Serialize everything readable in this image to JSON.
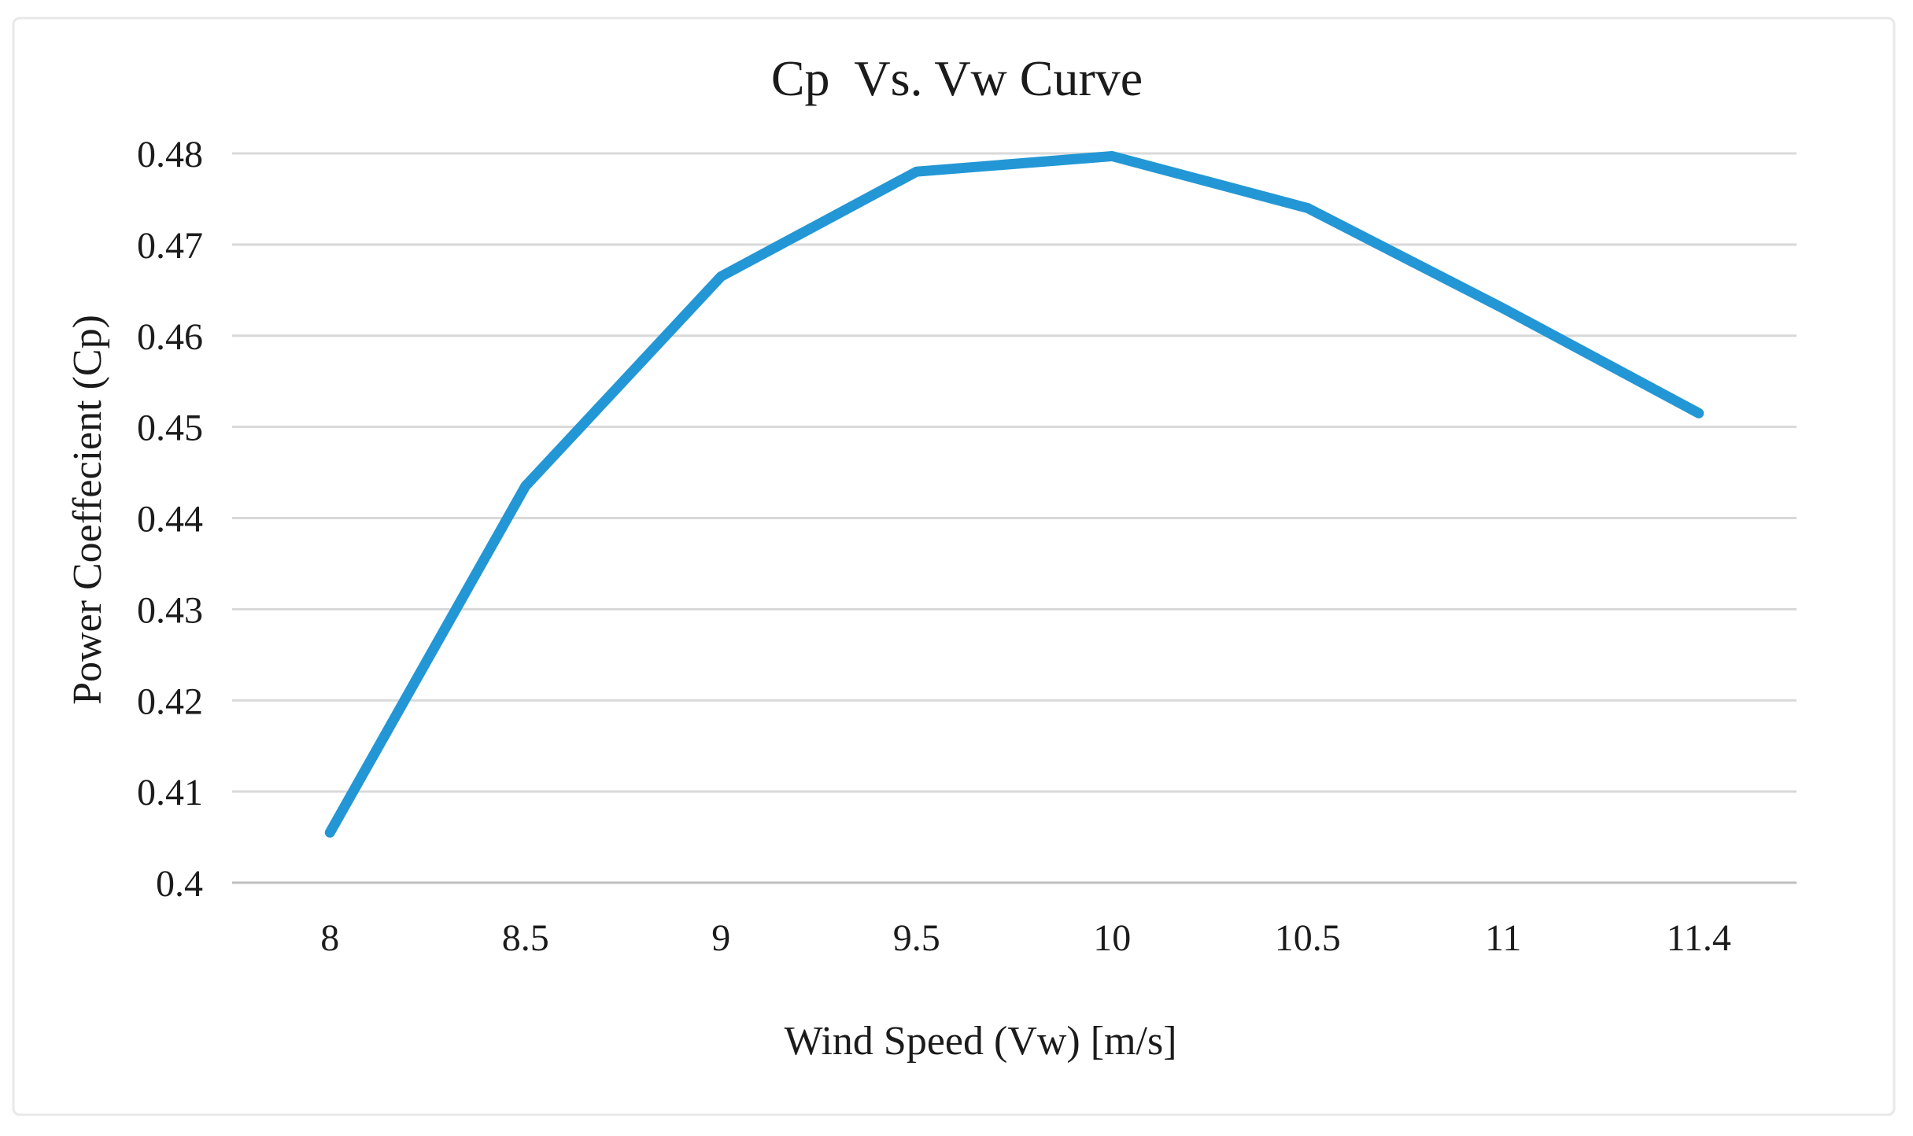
{
  "chart_data": {
    "type": "line",
    "title": "Cp  Vs. Vw Curve",
    "xlabel": "Wind Speed (Vw) [m/s]",
    "ylabel": "Power Coeffecient (Cp)",
    "categories": [
      "8",
      "8.5",
      "9",
      "9.5",
      "10",
      "10.5",
      "11",
      "11.4"
    ],
    "series": [
      {
        "name": "Cp",
        "values": [
          0.4055,
          0.4435,
          0.4665,
          0.478,
          0.4797,
          0.474,
          0.463,
          0.4515
        ]
      }
    ],
    "ylim": [
      0.4,
      0.48
    ],
    "y_tick_step": 0.01,
    "y_tick_labels": [
      "0.4",
      "0.41",
      "0.42",
      "0.43",
      "0.44",
      "0.45",
      "0.46",
      "0.47",
      "0.48"
    ],
    "grid": "horizontal",
    "legend": "none",
    "colors": {
      "line": "#2397d5",
      "gridline": "#d9d9d9",
      "axis_line": "#bfbfbf",
      "frame_border": "#e8e8e8",
      "text": "#1b1b1b",
      "background": "#ffffff"
    }
  }
}
